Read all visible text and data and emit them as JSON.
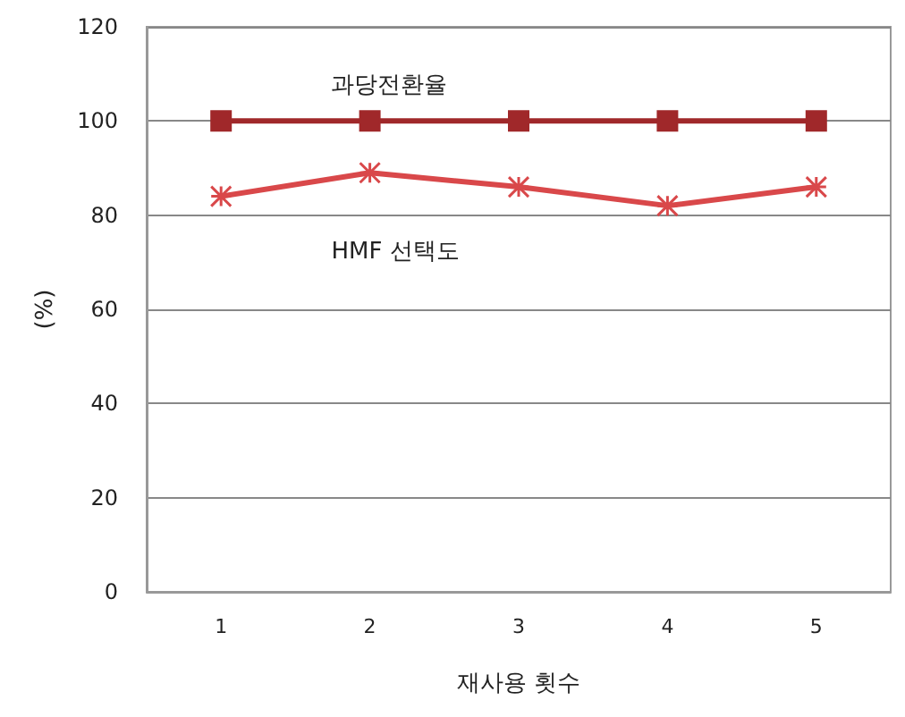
{
  "chart_data": {
    "type": "line",
    "xlabel": "재사용 횟수",
    "ylabel": "(%)",
    "categories": [
      "1",
      "2",
      "3",
      "4",
      "5"
    ],
    "series": [
      {
        "name": "과당전환율",
        "color": "#a0282a",
        "marker": "square",
        "values": [
          100,
          100,
          100,
          100,
          100
        ]
      },
      {
        "name": "HMF 선택도",
        "color": "#d9484a",
        "marker": "cross",
        "values": [
          84,
          89,
          86,
          82,
          86
        ]
      }
    ],
    "ylim": [
      0,
      120
    ],
    "yticks": [
      0,
      20,
      40,
      60,
      80,
      100,
      120
    ],
    "grid": "y",
    "legend": false
  }
}
